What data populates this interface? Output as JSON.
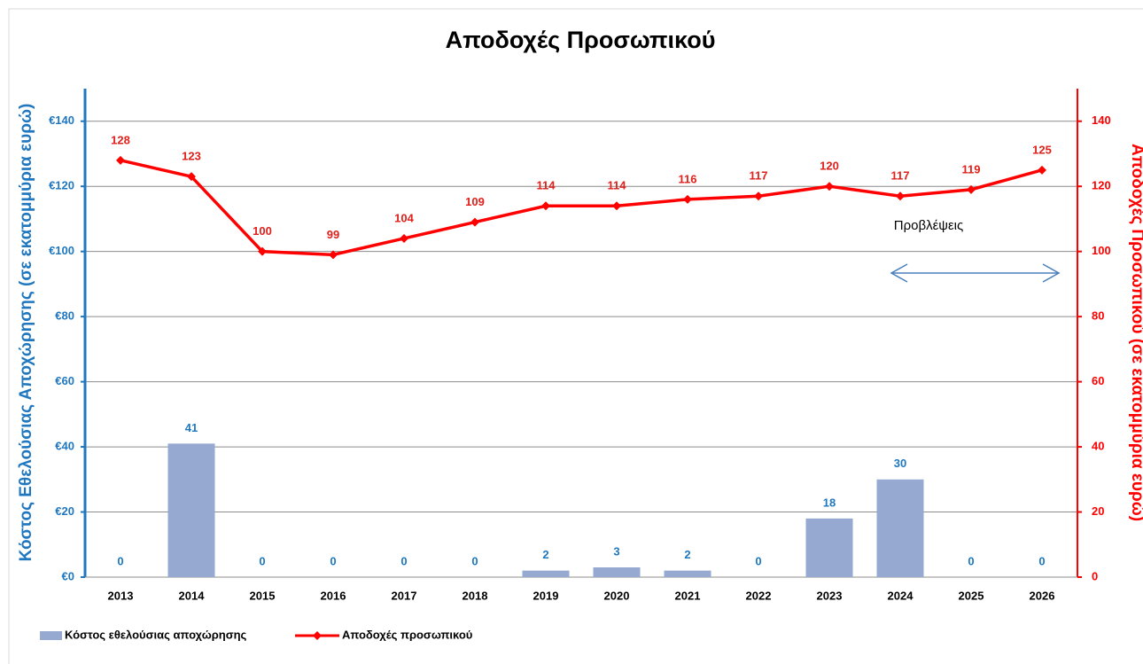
{
  "chart_data": {
    "type": "bar",
    "title": "Αποδοχές Προσωπικού",
    "y_label": "Κόστος Εθελούσιας Αποχώρησης (σε εκατομμύρια ευρώ)",
    "y2_label": "Αποδοχές Προσωπικού (σε εκατομμύρια ευρώ)",
    "annotation": "Προβλέψεις",
    "categories": [
      "2013",
      "2014",
      "2015",
      "2016",
      "2017",
      "2018",
      "2019",
      "2020",
      "2021",
      "2022",
      "2023",
      "2024",
      "2025",
      "2026"
    ],
    "series": [
      {
        "name": "Κόστος εθελούσιας αποχώρησης",
        "type": "bar",
        "color": "#95a9d1",
        "label_color": "#1f77c0",
        "values": [
          0,
          41,
          0,
          0,
          0,
          0,
          2,
          3,
          2,
          0,
          18,
          30,
          0,
          0
        ]
      },
      {
        "name": "Αποδοχές προσωπικού",
        "type": "line",
        "axis": "y2",
        "color": "#ff0000",
        "label_color": "#e0201b",
        "values": [
          128,
          123,
          100,
          99,
          104,
          109,
          114,
          114,
          116,
          117,
          120,
          117,
          119,
          125
        ]
      }
    ],
    "ylim": [
      0,
      150
    ],
    "yticks": [
      {
        "value": 0,
        "label": "€0"
      },
      {
        "value": 20,
        "label": "€20"
      },
      {
        "value": 40,
        "label": "€40"
      },
      {
        "value": 60,
        "label": "€60"
      },
      {
        "value": 80,
        "label": "€80"
      },
      {
        "value": 100,
        "label": "€100"
      },
      {
        "value": 120,
        "label": "€120"
      },
      {
        "value": 140,
        "label": "€140"
      }
    ],
    "y2lim": [
      0,
      150
    ],
    "y2ticks": [
      0,
      20,
      40,
      60,
      80,
      100,
      120,
      140
    ],
    "grid": true,
    "legend": "bottom-left"
  }
}
